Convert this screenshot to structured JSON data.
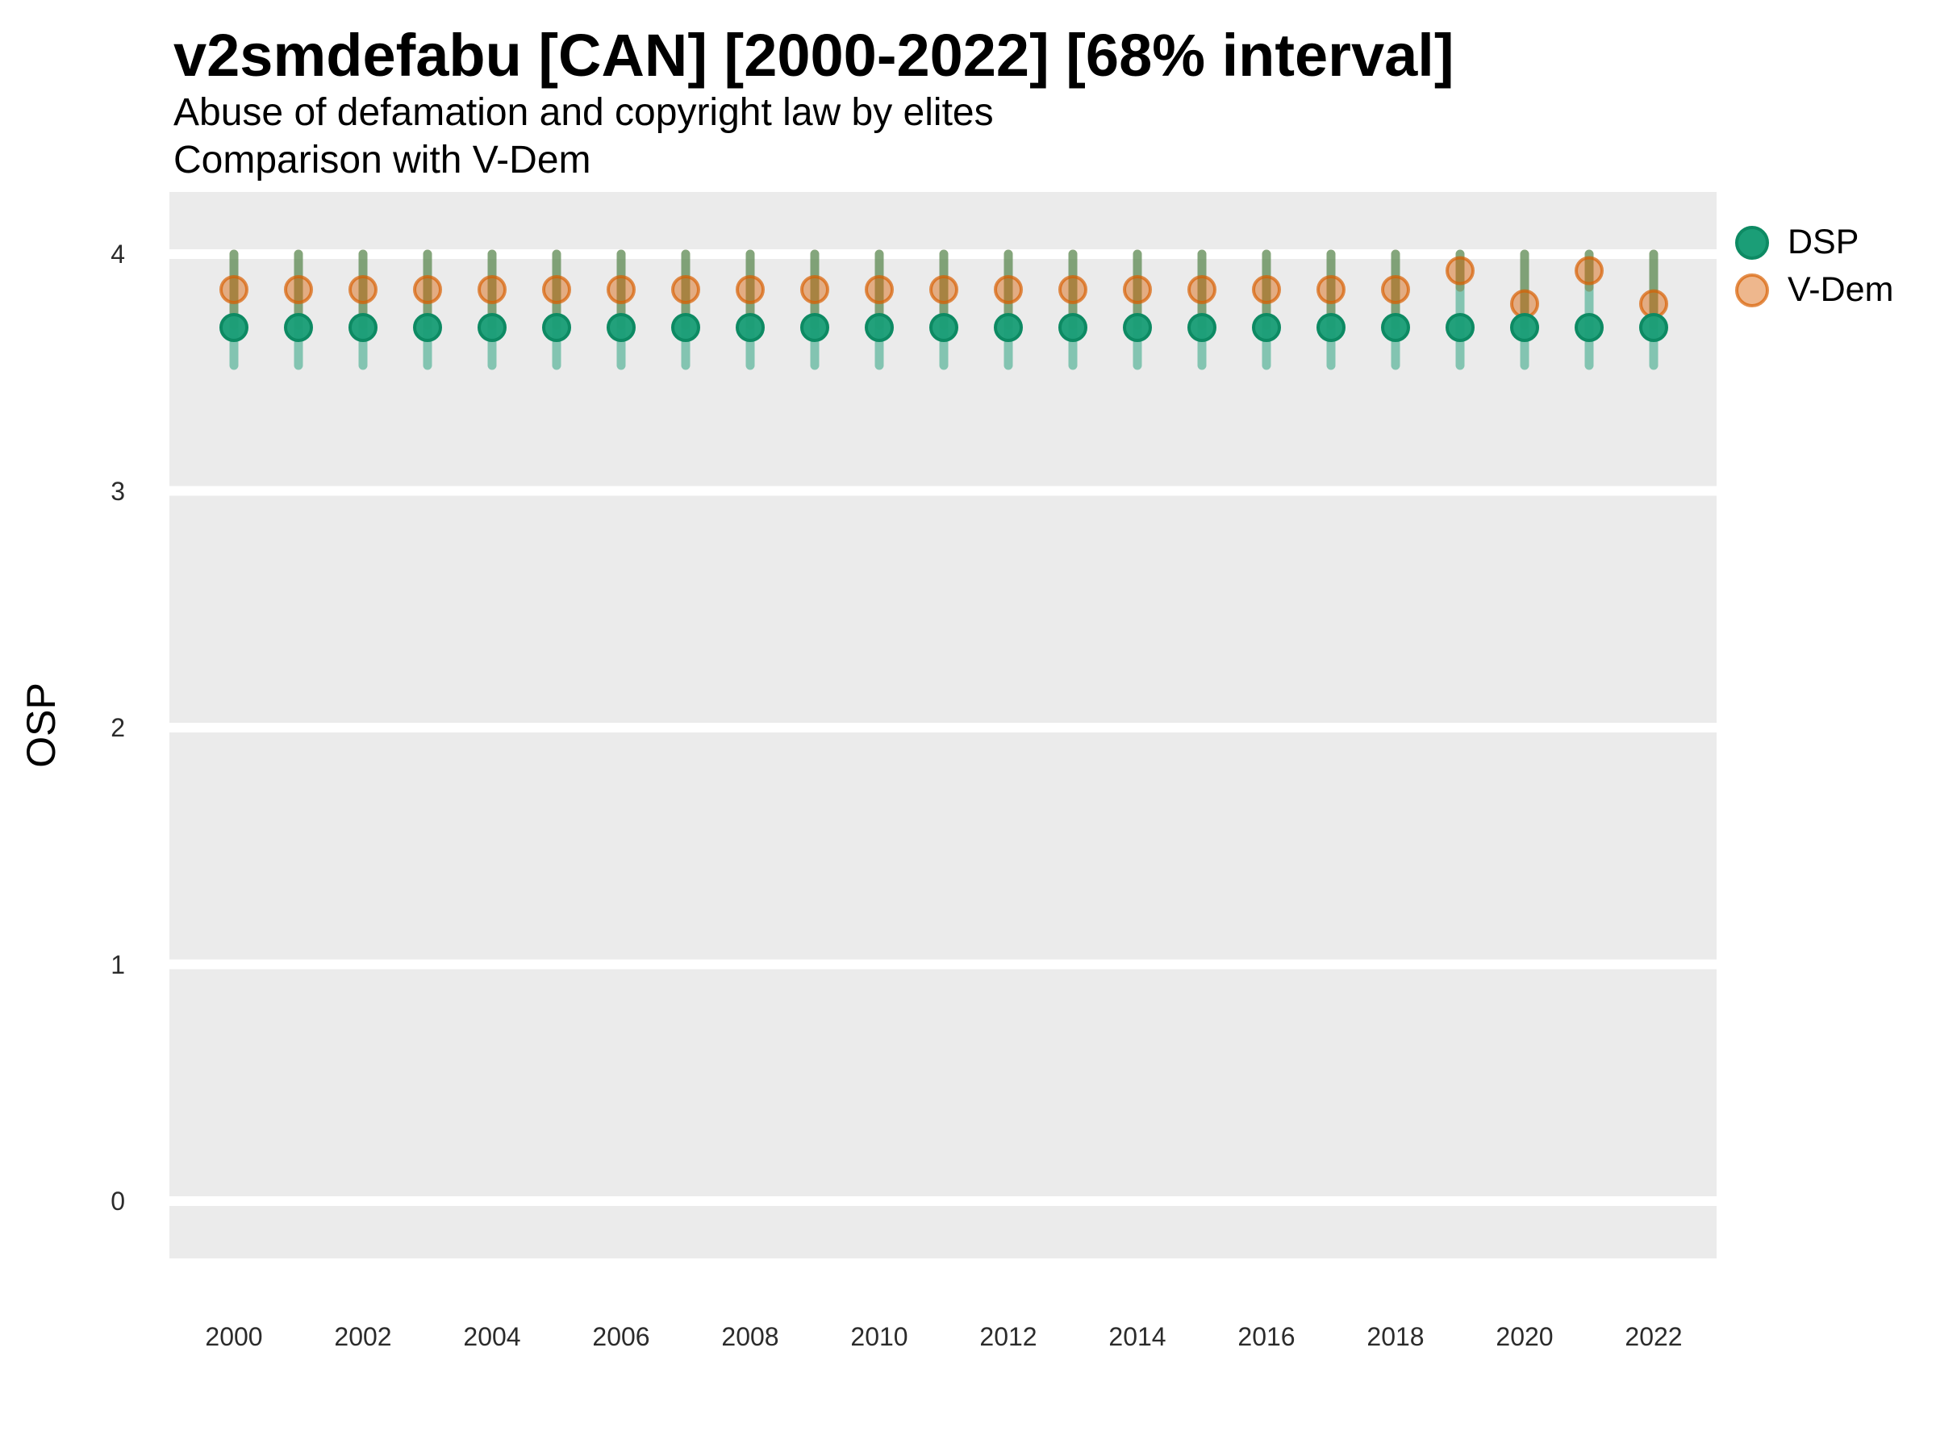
{
  "header": {
    "title": "v2smdefabu [CAN] [2000-2022] [68% interval]",
    "subtitle_line1": "Abuse of defamation and copyright law by elites",
    "subtitle_line2": "Comparison with V-Dem"
  },
  "chart_data": {
    "type": "scatter",
    "title": "v2smdefabu [CAN] [2000-2022] [68% interval]",
    "subtitle": [
      "Abuse of defamation and copyright law by elites",
      "Comparison with V-Dem"
    ],
    "xlabel": "",
    "ylabel": "OSP",
    "interval_note": "68% interval",
    "x": [
      2000,
      2001,
      2002,
      2003,
      2004,
      2005,
      2006,
      2007,
      2008,
      2009,
      2010,
      2011,
      2012,
      2013,
      2014,
      2015,
      2016,
      2017,
      2018,
      2019,
      2020,
      2021,
      2022
    ],
    "xtick_labels": [
      "2000",
      "2002",
      "2004",
      "2006",
      "2008",
      "2010",
      "2012",
      "2014",
      "2016",
      "2018",
      "2020",
      "2022"
    ],
    "yticks": [
      "0",
      "1",
      "2",
      "3",
      "4"
    ],
    "ylim": [
      -0.25,
      4.25
    ],
    "grid": "horizontal major gridlines only, white on grey panel",
    "legend_position": "right",
    "panel_bg": "#ebebeb",
    "grid_color": "#ffffff",
    "series": [
      {
        "name": "DSP",
        "color": "#1b9e77",
        "values": [
          3.69,
          3.69,
          3.69,
          3.69,
          3.69,
          3.69,
          3.69,
          3.69,
          3.69,
          3.69,
          3.69,
          3.69,
          3.69,
          3.69,
          3.69,
          3.69,
          3.69,
          3.69,
          3.69,
          3.69,
          3.69,
          3.69,
          3.69
        ],
        "interval_low": [
          3.53,
          3.53,
          3.53,
          3.53,
          3.53,
          3.53,
          3.53,
          3.53,
          3.53,
          3.53,
          3.53,
          3.53,
          3.53,
          3.53,
          3.53,
          3.53,
          3.53,
          3.53,
          3.53,
          3.53,
          3.53,
          3.53,
          3.53
        ],
        "interval_high": [
          4.0,
          4.0,
          4.0,
          4.0,
          4.0,
          4.0,
          4.0,
          4.0,
          4.0,
          4.0,
          4.0,
          4.0,
          4.0,
          4.0,
          4.0,
          4.0,
          4.0,
          4.0,
          4.0,
          4.0,
          4.0,
          4.0,
          4.0
        ]
      },
      {
        "name": "V-Dem",
        "color": "#d95f02",
        "values": [
          3.85,
          3.85,
          3.85,
          3.85,
          3.85,
          3.85,
          3.85,
          3.85,
          3.85,
          3.85,
          3.85,
          3.85,
          3.85,
          3.85,
          3.85,
          3.85,
          3.85,
          3.85,
          3.85,
          3.93,
          3.79,
          3.93,
          3.79
        ],
        "interval_low": [
          3.7,
          3.7,
          3.7,
          3.7,
          3.7,
          3.7,
          3.7,
          3.7,
          3.7,
          3.7,
          3.7,
          3.7,
          3.7,
          3.7,
          3.7,
          3.7,
          3.7,
          3.7,
          3.7,
          3.86,
          3.7,
          3.86,
          3.7
        ],
        "interval_high": [
          4.0,
          4.0,
          4.0,
          4.0,
          4.0,
          4.0,
          4.0,
          4.0,
          4.0,
          4.0,
          4.0,
          4.0,
          4.0,
          4.0,
          4.0,
          4.0,
          4.0,
          4.0,
          4.0,
          4.0,
          4.0,
          4.0,
          4.0
        ]
      }
    ]
  }
}
